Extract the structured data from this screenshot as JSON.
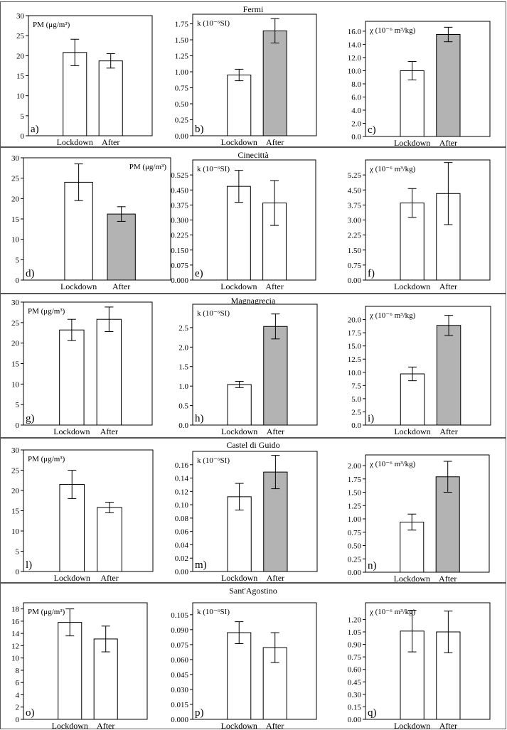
{
  "colors": {
    "open_bar": "#ffffff",
    "filled_bar": "#b3b3b3",
    "stroke": "#000000"
  },
  "chart_data": [
    {
      "row_title": "Fermi",
      "panels": [
        {
          "type": "bar",
          "panel_label": "a)",
          "ylabel": "PM (μg/m³)",
          "categories": [
            "Lockdown",
            "After"
          ],
          "values": [
            20.8,
            18.7
          ],
          "errors": [
            3.3,
            1.8
          ],
          "fill": [
            "open",
            "open"
          ],
          "ylim": [
            0,
            30
          ],
          "yticks": [
            0,
            5,
            10,
            15,
            20,
            25,
            30
          ],
          "tick_labels": [
            "0",
            "5",
            "10",
            "15",
            "20",
            "25",
            "30"
          ],
          "label_pos": "top-left"
        },
        {
          "type": "bar",
          "panel_label": "b)",
          "ylabel": "k (10⁻⁶SI)",
          "categories": [
            "Lockdown",
            "After"
          ],
          "values": [
            0.95,
            1.64
          ],
          "errors": [
            0.09,
            0.19
          ],
          "fill": [
            "open",
            "filled"
          ],
          "ylim": [
            0,
            1.9
          ],
          "yticks": [
            0,
            0.25,
            0.5,
            0.75,
            1.0,
            1.25,
            1.5,
            1.75
          ],
          "tick_labels": [
            "0.00",
            "0.25",
            "0.50",
            "0.75",
            "1.00",
            "1.25",
            "1.50",
            "1.75"
          ],
          "label_pos": "top-left"
        },
        {
          "type": "bar",
          "panel_label": "c)",
          "ylabel": "χ (10⁻⁶ m³/kg)",
          "categories": [
            "Lockdown",
            "After"
          ],
          "values": [
            10.0,
            15.5
          ],
          "errors": [
            1.4,
            1.1
          ],
          "fill": [
            "open",
            "filled"
          ],
          "ylim": [
            0,
            17.5
          ],
          "yticks": [
            0,
            2,
            4,
            6,
            8,
            10,
            12,
            14,
            16
          ],
          "tick_labels": [
            "0.0",
            "2.0",
            "4.0",
            "6.0",
            "8.0",
            "10.0",
            "12.0",
            "14.0",
            "16.0"
          ],
          "label_pos": "top-left"
        }
      ]
    },
    {
      "row_title": "Cinecittà",
      "panels": [
        {
          "type": "bar",
          "panel_label": "d)",
          "ylabel": "PM (μg/m³)",
          "categories": [
            "Lockdown",
            "After"
          ],
          "values": [
            24.0,
            16.2
          ],
          "errors": [
            4.5,
            1.8
          ],
          "fill": [
            "open",
            "filled"
          ],
          "ylim": [
            0,
            30
          ],
          "yticks": [
            0,
            5,
            10,
            15,
            20,
            25,
            30
          ],
          "tick_labels": [
            "0",
            "5",
            "10",
            "15",
            "20",
            "25",
            "30"
          ],
          "label_pos": "top-right"
        },
        {
          "type": "bar",
          "panel_label": "e)",
          "ylabel": "k (10⁻⁶SI)",
          "categories": [
            "Lockdown",
            "After"
          ],
          "values": [
            0.468,
            0.385
          ],
          "errors": [
            0.08,
            0.112
          ],
          "fill": [
            "open",
            "open"
          ],
          "ylim": [
            0,
            0.6
          ],
          "yticks": [
            0,
            0.075,
            0.15,
            0.225,
            0.3,
            0.375,
            0.45,
            0.525
          ],
          "tick_labels": [
            "0.000",
            "0.075",
            "0.150",
            "0.225",
            "0.300",
            "0.375",
            "0.450",
            "0.525"
          ],
          "label_pos": "top-left"
        },
        {
          "type": "bar",
          "panel_label": "f)",
          "ylabel": "χ (10⁻⁶ m³/kg)",
          "categories": [
            "Lockdown",
            "After"
          ],
          "values": [
            3.85,
            4.32
          ],
          "errors": [
            0.72,
            1.55
          ],
          "fill": [
            "open",
            "open"
          ],
          "ylim": [
            0,
            6.0
          ],
          "yticks": [
            0,
            0.75,
            1.5,
            2.25,
            3.0,
            3.75,
            4.5,
            5.25
          ],
          "tick_labels": [
            "0.00",
            "0.75",
            "1.50",
            "2.25",
            "3.00",
            "3.75",
            "4.50",
            "5.25"
          ],
          "label_pos": "top-left"
        }
      ]
    },
    {
      "row_title": "Magnagrecia",
      "panels": [
        {
          "type": "bar",
          "panel_label": "g)",
          "ylabel": "PM (μg/m³)",
          "categories": [
            "Lockdown",
            "After"
          ],
          "values": [
            23.2,
            25.8
          ],
          "errors": [
            2.6,
            3.0
          ],
          "fill": [
            "open",
            "open"
          ],
          "ylim": [
            0,
            30
          ],
          "yticks": [
            0,
            5,
            10,
            15,
            20,
            25,
            30
          ],
          "tick_labels": [
            "0",
            "5",
            "10",
            "15",
            "20",
            "25",
            "30"
          ],
          "label_pos": "top-left"
        },
        {
          "type": "bar",
          "panel_label": "h)",
          "ylabel": "k (10⁻⁶SI)",
          "categories": [
            "Lockdown",
            "After"
          ],
          "values": [
            1.04,
            2.53
          ],
          "errors": [
            0.08,
            0.32
          ],
          "fill": [
            "open",
            "filled"
          ],
          "ylim": [
            0,
            3.1
          ],
          "yticks": [
            0,
            0.5,
            1.0,
            1.5,
            2.0,
            2.5
          ],
          "tick_labels": [
            "0.0",
            "0.5",
            "1.0",
            "1.5",
            "2.0",
            "2.5"
          ],
          "label_pos": "top-left"
        },
        {
          "type": "bar",
          "panel_label": "i)",
          "ylabel": "χ (10⁻⁶ m³/kg)",
          "categories": [
            "Lockdown",
            "After"
          ],
          "values": [
            9.7,
            18.9
          ],
          "errors": [
            1.3,
            1.9
          ],
          "fill": [
            "open",
            "filled"
          ],
          "ylim": [
            0,
            22.5
          ],
          "yticks": [
            0,
            2.5,
            5,
            7.5,
            10,
            12.5,
            15,
            17.5,
            20
          ],
          "tick_labels": [
            "0.0",
            "2.5",
            "5.0",
            "7.5",
            "10.0",
            "12.5",
            "15.0",
            "17.5",
            "20.0"
          ],
          "label_pos": "top-left"
        }
      ]
    },
    {
      "row_title": "Castel di Guido",
      "panels": [
        {
          "type": "bar",
          "panel_label": "l)",
          "ylabel": "PM (μg/m³)",
          "categories": [
            "Lockdown",
            "After"
          ],
          "values": [
            21.5,
            15.8
          ],
          "errors": [
            3.5,
            1.3
          ],
          "fill": [
            "open",
            "open"
          ],
          "ylim": [
            0,
            30
          ],
          "yticks": [
            0,
            5,
            10,
            15,
            20,
            25,
            30
          ],
          "tick_labels": [
            "0",
            "5",
            "10",
            "15",
            "20",
            "25",
            "30"
          ],
          "label_pos": "top-left"
        },
        {
          "type": "bar",
          "panel_label": "m)",
          "ylabel": "k (10⁻⁶SI)",
          "categories": [
            "Lockdown",
            "After"
          ],
          "values": [
            0.112,
            0.149
          ],
          "errors": [
            0.02,
            0.025
          ],
          "fill": [
            "open",
            "filled"
          ],
          "ylim": [
            0,
            0.18
          ],
          "yticks": [
            0,
            0.02,
            0.04,
            0.06,
            0.08,
            0.1,
            0.12,
            0.14,
            0.16
          ],
          "tick_labels": [
            "0.00",
            "0.02",
            "0.04",
            "0.06",
            "0.08",
            "0.10",
            "0.12",
            "0.14",
            "0.16"
          ],
          "label_pos": "top-left"
        },
        {
          "type": "bar",
          "panel_label": "n)",
          "ylabel": "χ (10⁻⁶ m³/kg)",
          "categories": [
            "Lockdown",
            "After"
          ],
          "values": [
            0.94,
            1.79
          ],
          "errors": [
            0.15,
            0.29
          ],
          "fill": [
            "open",
            "filled"
          ],
          "ylim": [
            0,
            2.2
          ],
          "yticks": [
            0,
            0.25,
            0.5,
            0.75,
            1.0,
            1.25,
            1.5,
            1.75,
            2.0
          ],
          "tick_labels": [
            "0.00",
            "0.25",
            "0.50",
            "0.75",
            "1.00",
            "1.25",
            "1.50",
            "1.75",
            "2.00"
          ],
          "label_pos": "top-left"
        }
      ]
    },
    {
      "row_title": "Sant'Agostino",
      "panels": [
        {
          "type": "bar",
          "panel_label": "o)",
          "ylabel": "PM (μg/m³)",
          "categories": [
            "Lockdown",
            "After"
          ],
          "values": [
            15.8,
            13.1
          ],
          "errors": [
            2.2,
            2.1
          ],
          "fill": [
            "open",
            "open"
          ],
          "ylim": [
            0,
            19
          ],
          "yticks": [
            0,
            2,
            4,
            6,
            8,
            10,
            12,
            14,
            16,
            18
          ],
          "tick_labels": [
            "0",
            "2",
            "4",
            "6",
            "8",
            "10",
            "12",
            "14",
            "16",
            "18"
          ],
          "label_pos": "top-left"
        },
        {
          "type": "bar",
          "panel_label": "p)",
          "ylabel": "k (10⁻⁶SI)",
          "categories": [
            "Lockdown",
            "After"
          ],
          "values": [
            0.087,
            0.072
          ],
          "errors": [
            0.011,
            0.015
          ],
          "fill": [
            "open",
            "open"
          ],
          "ylim": [
            0,
            0.117
          ],
          "yticks": [
            0,
            0.015,
            0.03,
            0.045,
            0.06,
            0.075,
            0.09,
            0.105
          ],
          "tick_labels": [
            "0.000",
            "0.015",
            "0.030",
            "0.045",
            "0.060",
            "0.075",
            "0.090",
            "0.105"
          ],
          "label_pos": "top-left"
        },
        {
          "type": "bar",
          "panel_label": "q)",
          "ylabel": "χ (10⁻⁶ m³/kg)",
          "categories": [
            "Lockdown",
            "After"
          ],
          "values": [
            1.06,
            1.05
          ],
          "errors": [
            0.25,
            0.25
          ],
          "fill": [
            "open",
            "open"
          ],
          "ylim": [
            0,
            1.4
          ],
          "yticks": [
            0,
            0.15,
            0.3,
            0.45,
            0.6,
            0.75,
            0.9,
            1.05,
            1.2
          ],
          "tick_labels": [
            "0.00",
            "0.15",
            "0.30",
            "0.45",
            "0.60",
            "0.75",
            "0.90",
            "1.05",
            "1.20"
          ],
          "label_pos": "top-left"
        }
      ]
    }
  ]
}
